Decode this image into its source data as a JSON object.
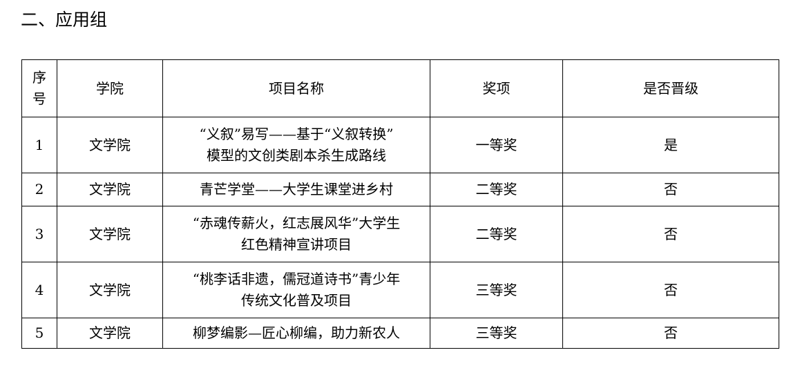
{
  "title": "二、应用组",
  "table": {
    "headers": [
      "序号",
      "学院",
      "项目名称",
      "奖项",
      "是否晋级"
    ],
    "rows": [
      {
        "no": "1",
        "college": "文学院",
        "name_line1": "“义叙”易写——基于“义叙转换”",
        "name_line2": "模型的文创类剧本杀生成路线",
        "award": "一等奖",
        "advance": "是"
      },
      {
        "no": "2",
        "college": "文学院",
        "name_line1": "青芒学堂——大学生课堂进乡村",
        "name_line2": "",
        "award": "二等奖",
        "advance": "否"
      },
      {
        "no": "3",
        "college": "文学院",
        "name_line1": "“赤魂传薪火，红志展风华”大学生",
        "name_line2": "红色精神宣讲项目",
        "award": "二等奖",
        "advance": "否"
      },
      {
        "no": "4",
        "college": "文学院",
        "name_line1": "“桃李话非遗，儒冠道诗书”青少年",
        "name_line2": "传统文化普及项目",
        "award": "三等奖",
        "advance": "否"
      },
      {
        "no": "5",
        "college": "文学院",
        "name_line1": "柳梦编影—匠心柳编，助力新农人",
        "name_line2": "",
        "award": "三等奖",
        "advance": "否"
      }
    ]
  }
}
